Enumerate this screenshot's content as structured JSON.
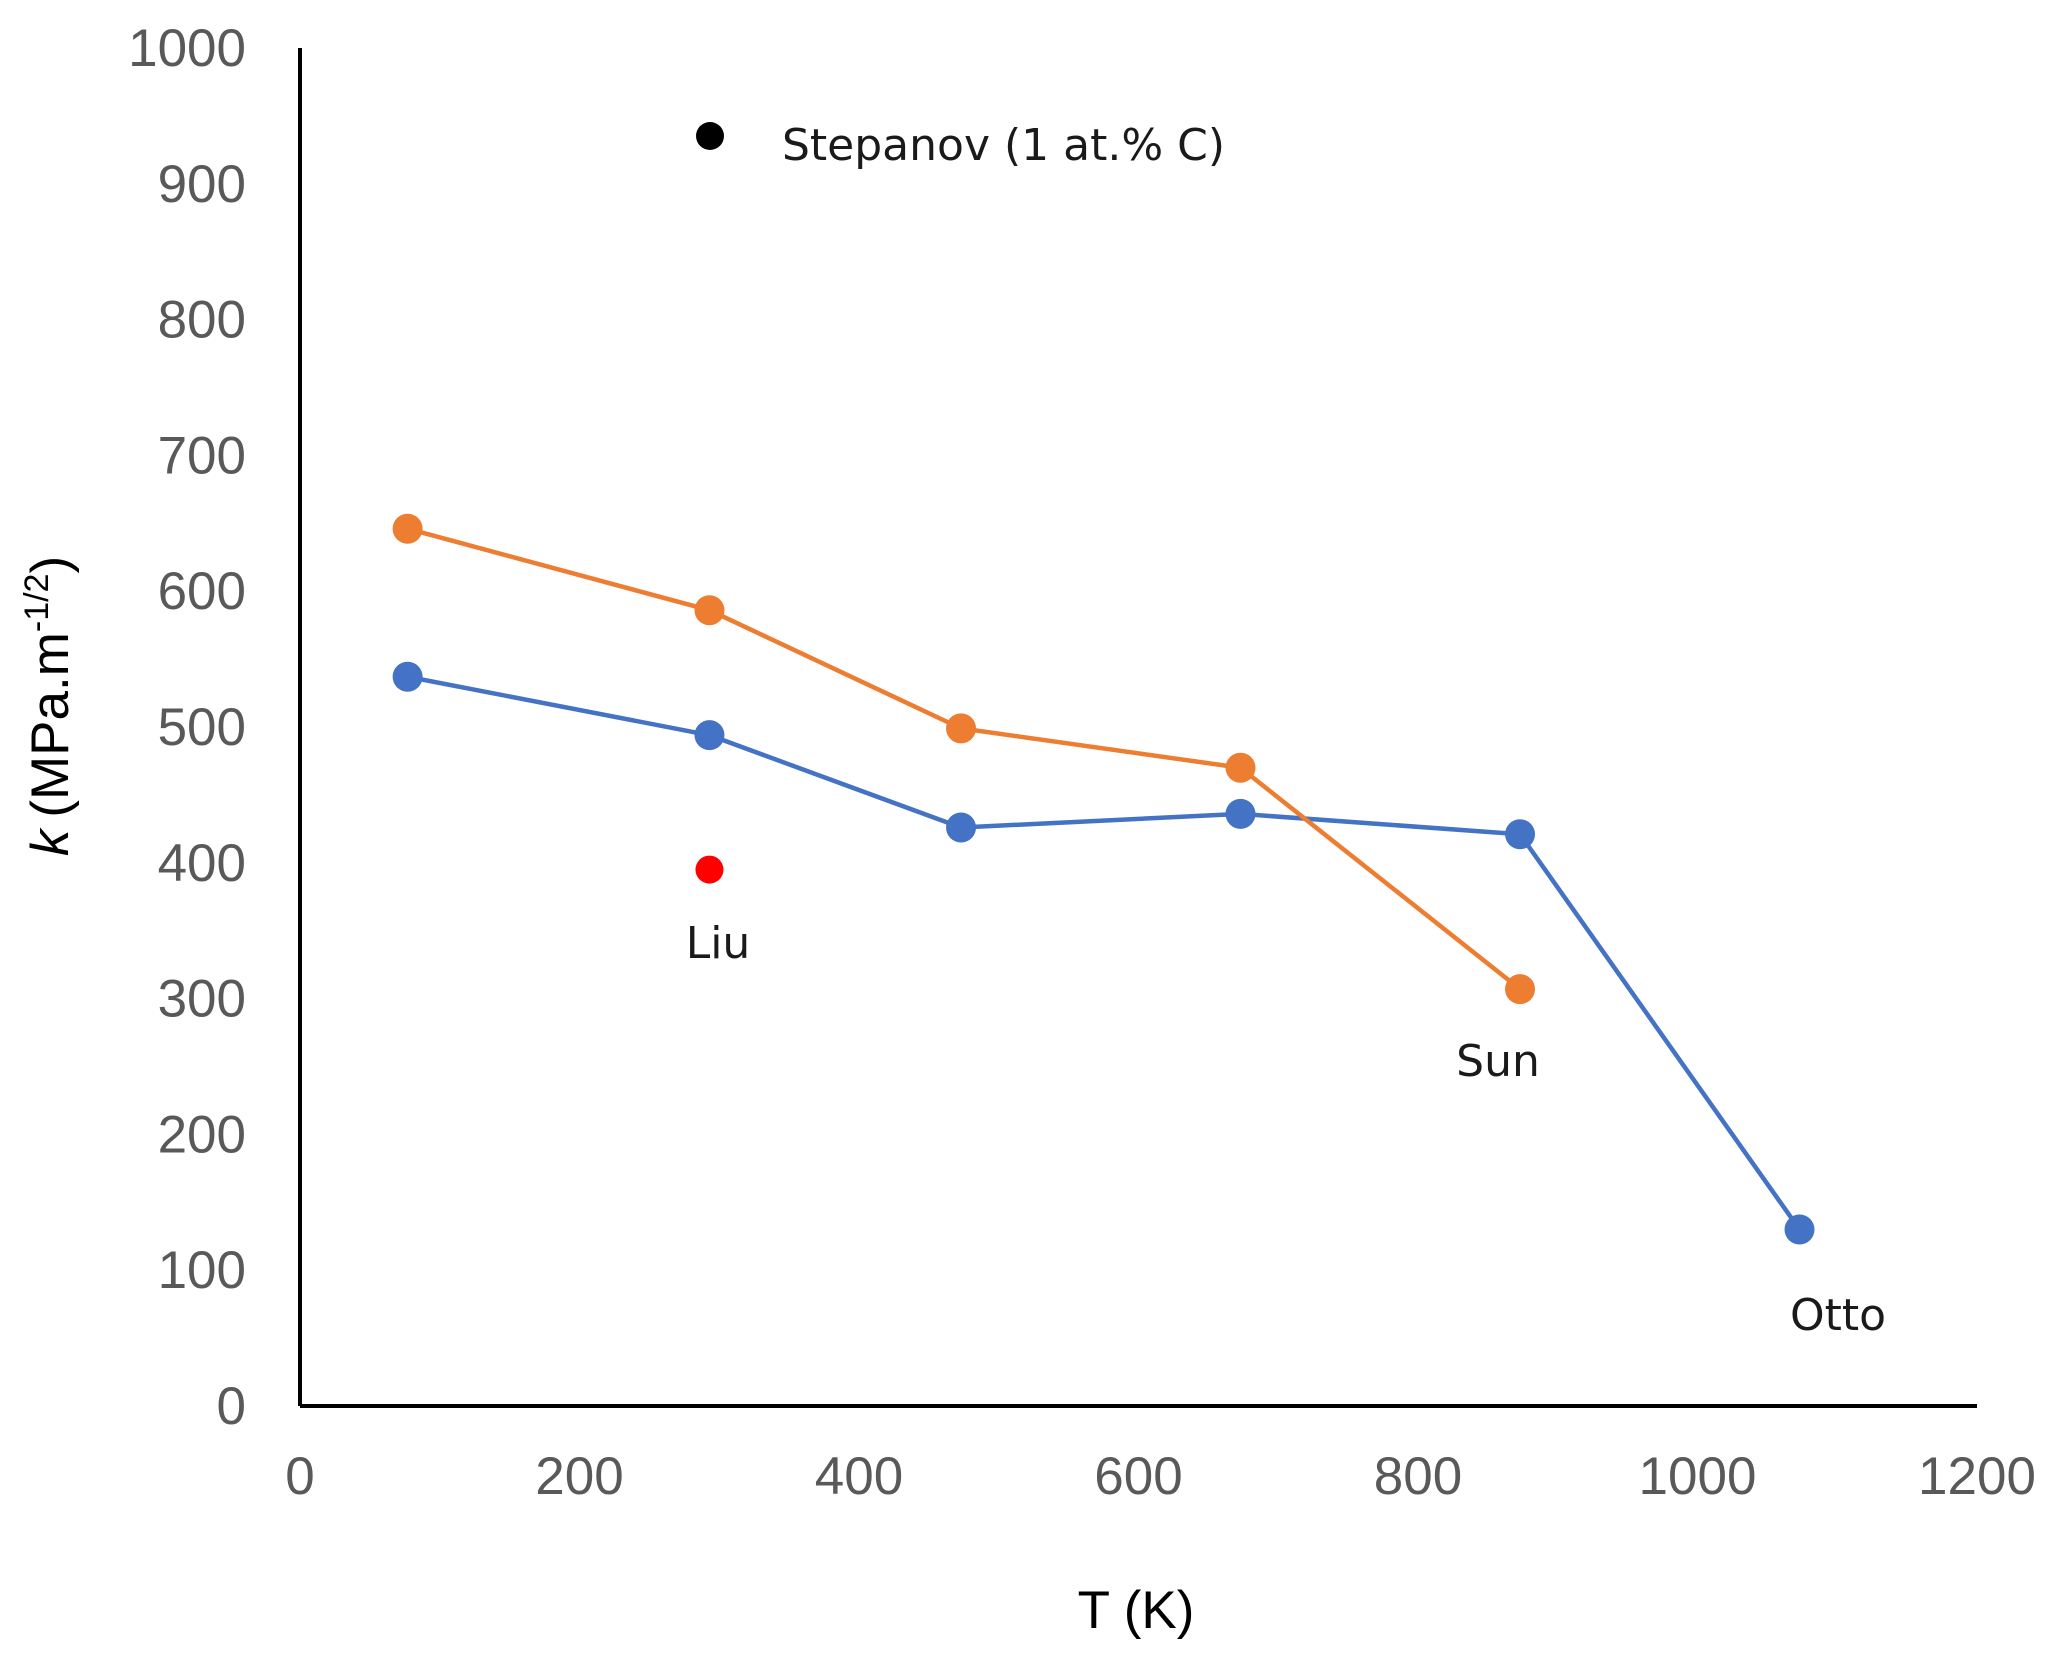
{
  "chart_data": {
    "type": "line",
    "title": "",
    "xlabel": "T (K)",
    "ylabel": {
      "symbol": "k",
      "units_prefix": "(MPa.m",
      "units_exponent": "-1/2",
      "units_suffix": ")"
    },
    "xlim": [
      0,
      1200
    ],
    "ylim": [
      0,
      1000
    ],
    "xticks": [
      "0",
      "200",
      "400",
      "600",
      "800",
      "1000",
      "1200"
    ],
    "yticks": [
      "0",
      "100",
      "200",
      "300",
      "400",
      "500",
      "600",
      "700",
      "800",
      "900",
      "1000"
    ],
    "series": [
      {
        "name": "Otto",
        "color": "#4472C4",
        "x": [
          77,
          293,
          473,
          673,
          873,
          1073
        ],
        "y": [
          537,
          494,
          426,
          436,
          421,
          130
        ]
      },
      {
        "name": "Sun",
        "color": "#ED7D31",
        "x": [
          77,
          293,
          473,
          673,
          873
        ],
        "y": [
          646,
          586,
          499,
          470,
          307
        ]
      }
    ],
    "points": [
      {
        "name": "Liu",
        "color": "#FF0000",
        "x": 293,
        "y": 395
      }
    ],
    "legend": {
      "label": "Stepanov (1 at.% C)",
      "marker_color": "#000000",
      "placement": "top-left inside plot"
    },
    "annotations": [
      "Liu",
      "Sun",
      "Otto"
    ],
    "grid": false
  }
}
